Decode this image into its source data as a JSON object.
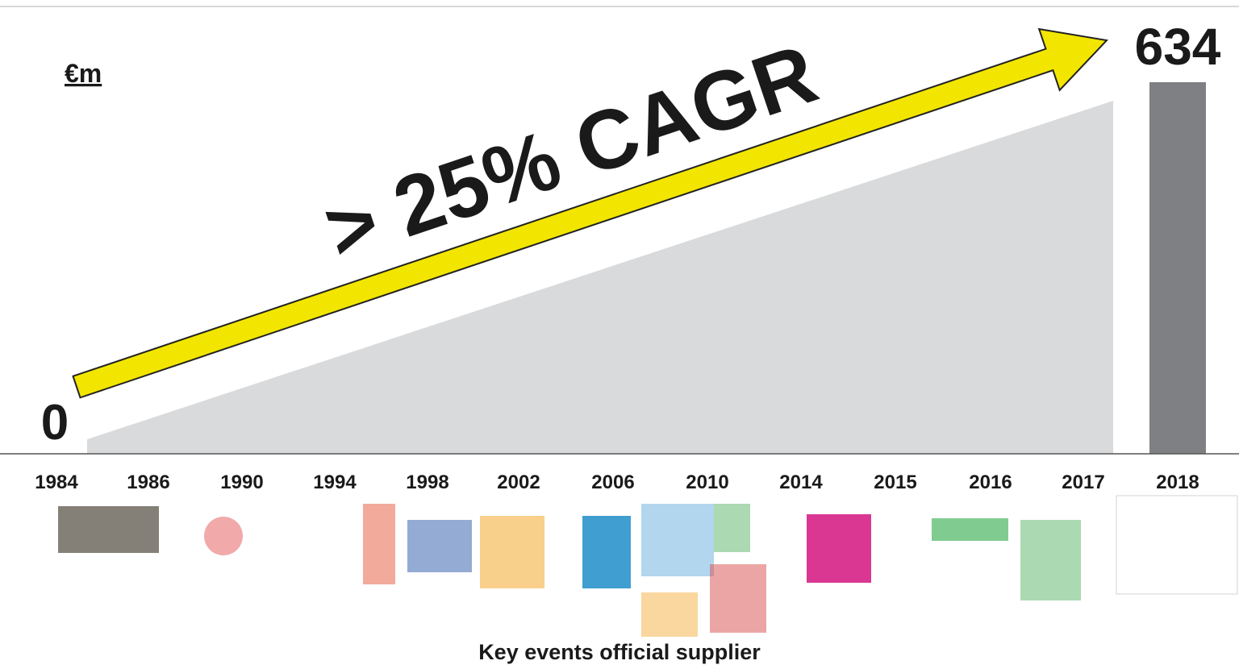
{
  "chart_data": {
    "type": "growth",
    "unit_label": "€m",
    "annotation": "> 25% CAGR",
    "footer": "Key events official supplier",
    "categories": [
      "1984",
      "1986",
      "1990",
      "1994",
      "1998",
      "2002",
      "2006",
      "2010",
      "2014",
      "2015",
      "2016",
      "2017",
      "2018"
    ],
    "values": [
      0,
      null,
      null,
      null,
      null,
      null,
      null,
      null,
      null,
      null,
      null,
      null,
      634
    ],
    "ylim": [
      0,
      634
    ],
    "area_color": "#d9dadb",
    "bar_color": "#7f8083",
    "arrow_color": "#f2e600"
  }
}
